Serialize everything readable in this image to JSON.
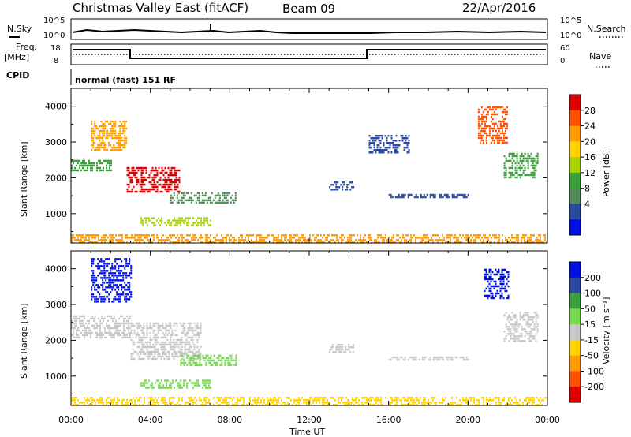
{
  "header": {
    "title": "Christmas Valley East (fitACF)",
    "beam": "Beam 09",
    "date": "22/Apr/2016"
  },
  "status_panels": {
    "nsky_label": "N.Sky",
    "nsky_ticks": [
      "10^5",
      "10^0"
    ],
    "nsearch_label": "N.Search",
    "nsearch_ticks": [
      "10^5",
      "10^0"
    ],
    "freq_label_1": "Freq.",
    "freq_label_2": "[MHz]",
    "freq_ticks": [
      "18",
      "8"
    ],
    "nave_label": "Nave",
    "nave_ticks": [
      "60",
      "0"
    ],
    "cpid_label": "CPID",
    "cpid_text": "normal (fast) 151 RF"
  },
  "chart_data": [
    {
      "type": "heatmap",
      "name": "power",
      "ylabel": "Slant Range [km]",
      "xlabel": "Time UT",
      "yticks": [
        "4000",
        "3000",
        "2000",
        "1000"
      ],
      "ylim": [
        180,
        4500
      ],
      "xticks": [
        "00:00",
        "04:00",
        "08:00",
        "12:00",
        "16:00",
        "20:00",
        "00:00"
      ],
      "xlim_hours": [
        0,
        24
      ],
      "colorbar": {
        "label": "Power [dB]",
        "tick_labels": [
          "28",
          "24",
          "20",
          "16",
          "12",
          "8",
          "4"
        ],
        "colors": [
          "#e00000",
          "#ff5000",
          "#ff9a00",
          "#ffd200",
          "#a8d400",
          "#3aa03a",
          "#508a5a",
          "#2a4aa0",
          "#0010e0"
        ]
      },
      "regions": [
        {
          "t": [
            0.0,
            2.0
          ],
          "r": [
            2200,
            2500
          ],
          "color": "#3aa03a"
        },
        {
          "t": [
            1.0,
            2.8
          ],
          "r": [
            2800,
            3600
          ],
          "color": "#ff9a00"
        },
        {
          "t": [
            2.8,
            5.5
          ],
          "r": [
            1600,
            2300
          ],
          "color": "#e00000"
        },
        {
          "t": [
            5.0,
            8.3
          ],
          "r": [
            1300,
            1600
          ],
          "color": "#508a5a"
        },
        {
          "t": [
            3.5,
            7.0
          ],
          "r": [
            700,
            900
          ],
          "color": "#a8d400"
        },
        {
          "t": [
            0.0,
            24.0
          ],
          "r": [
            200,
            420
          ],
          "color": "#ff9a00"
        },
        {
          "t": [
            13.0,
            14.2
          ],
          "r": [
            1700,
            1900
          ],
          "color": "#2a4aa0"
        },
        {
          "t": [
            15.0,
            17.0
          ],
          "r": [
            2700,
            3200
          ],
          "color": "#2a4aa0"
        },
        {
          "t": [
            16.0,
            20.0
          ],
          "r": [
            1450,
            1550
          ],
          "color": "#2a4aa0"
        },
        {
          "t": [
            20.5,
            22.0
          ],
          "r": [
            3000,
            4000
          ],
          "color": "#ff5000"
        },
        {
          "t": [
            21.8,
            23.5
          ],
          "r": [
            2000,
            2700
          ],
          "color": "#3aa03a"
        }
      ]
    },
    {
      "type": "heatmap",
      "name": "velocity",
      "ylabel": "Slant Range [km]",
      "xlabel": "Time UT",
      "yticks": [
        "4000",
        "3000",
        "2000",
        "1000"
      ],
      "ylim": [
        180,
        4500
      ],
      "xticks": [
        "00:00",
        "04:00",
        "08:00",
        "12:00",
        "16:00",
        "20:00",
        "00:00"
      ],
      "xlim_hours": [
        0,
        24
      ],
      "colorbar": {
        "label": "Velocity [m s⁻¹]",
        "tick_labels": [
          "200",
          "100",
          "50",
          "15",
          "-15",
          "-50",
          "-100",
          "-200"
        ],
        "colors": [
          "#0010e0",
          "#2a4aa0",
          "#3aa03a",
          "#78d850",
          "#c8c8c8",
          "#ffd200",
          "#ff9a00",
          "#ff5000",
          "#e00000"
        ]
      },
      "regions": [
        {
          "t": [
            1.0,
            3.0
          ],
          "r": [
            3100,
            4300
          ],
          "color": "#0010e0"
        },
        {
          "t": [
            0.0,
            3.0
          ],
          "r": [
            2100,
            2700
          ],
          "color": "#c8c8c8"
        },
        {
          "t": [
            3.0,
            6.5
          ],
          "r": [
            1500,
            2500
          ],
          "color": "#c8c8c8"
        },
        {
          "t": [
            5.5,
            8.3
          ],
          "r": [
            1300,
            1600
          ],
          "color": "#78d850"
        },
        {
          "t": [
            3.5,
            7.0
          ],
          "r": [
            700,
            900
          ],
          "color": "#78d850"
        },
        {
          "t": [
            0.0,
            24.0
          ],
          "r": [
            200,
            420
          ],
          "color": "#ffd200"
        },
        {
          "t": [
            13.0,
            14.2
          ],
          "r": [
            1700,
            1900
          ],
          "color": "#c8c8c8"
        },
        {
          "t": [
            16.0,
            20.0
          ],
          "r": [
            1450,
            1550
          ],
          "color": "#c8c8c8"
        },
        {
          "t": [
            20.8,
            22.0
          ],
          "r": [
            3200,
            4000
          ],
          "color": "#0010e0"
        },
        {
          "t": [
            21.8,
            23.5
          ],
          "r": [
            2000,
            2800
          ],
          "color": "#c8c8c8"
        }
      ]
    }
  ]
}
